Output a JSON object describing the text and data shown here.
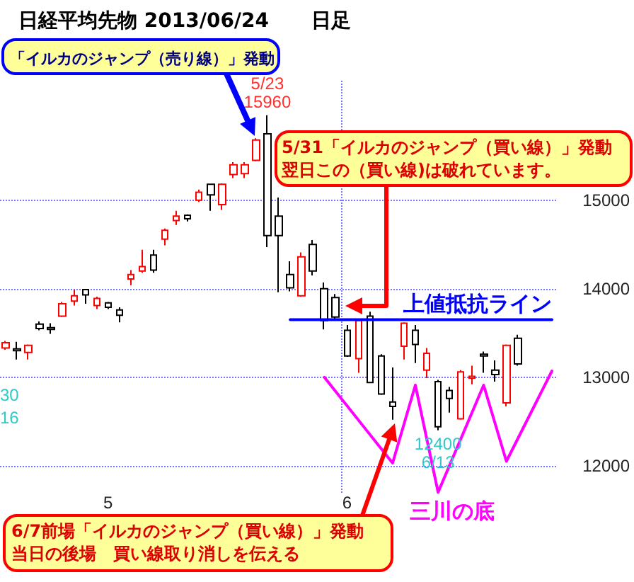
{
  "chart_data": {
    "type": "candlestick",
    "title": "日経平均先物 2013/06/24",
    "subtitle": "日足",
    "categories": [
      null,
      null,
      null,
      null,
      null,
      null,
      null,
      null,
      null,
      "5",
      null,
      null,
      null,
      null,
      null,
      null,
      null,
      null,
      null,
      null,
      null,
      null,
      null,
      null,
      null,
      null,
      null,
      null,
      null,
      null,
      "6",
      null,
      null,
      null,
      null,
      null,
      null,
      null,
      null,
      null,
      null,
      null,
      null,
      null,
      null,
      null,
      null,
      null,
      null
    ],
    "ohlc": [
      [
        13330,
        13410,
        13310,
        13390
      ],
      [
        13320,
        13400,
        13200,
        13300
      ],
      [
        13280,
        13370,
        13200,
        13360
      ],
      [
        13600,
        13630,
        13530,
        13550
      ],
      [
        13560,
        13610,
        13490,
        13540
      ],
      [
        13690,
        13850,
        13680,
        13830
      ],
      [
        13860,
        13990,
        13810,
        13920
      ],
      [
        13990,
        13990,
        13830,
        13930
      ],
      [
        13810,
        13910,
        13770,
        13890
      ],
      [
        13840,
        13850,
        13770,
        13790
      ],
      [
        13760,
        13790,
        13620,
        13700
      ],
      [
        14110,
        14210,
        14040,
        14160
      ],
      [
        14200,
        14440,
        14180,
        14250
      ],
      [
        14380,
        14440,
        14180,
        14210
      ],
      [
        14560,
        14680,
        14490,
        14660
      ],
      [
        14770,
        14880,
        14720,
        14820
      ],
      [
        14830,
        14840,
        14760,
        14790
      ],
      [
        15000,
        15120,
        14980,
        15090
      ],
      [
        15180,
        15180,
        14880,
        15060
      ],
      [
        14950,
        15190,
        14890,
        15180
      ],
      [
        15290,
        15430,
        15250,
        15400
      ],
      [
        15300,
        15430,
        15250,
        15400
      ],
      [
        15450,
        15700,
        15440,
        15680
      ],
      [
        15750,
        15960,
        14470,
        14600
      ],
      [
        14820,
        15030,
        13960,
        14600
      ],
      [
        14160,
        14310,
        13970,
        14010
      ],
      [
        13920,
        14410,
        13910,
        14360
      ],
      [
        14500,
        14550,
        14150,
        14200
      ],
      [
        14000,
        14070,
        13540,
        13640
      ],
      [
        13900,
        13940,
        13650,
        13680
      ],
      [
        13530,
        13590,
        13230,
        13240
      ],
      [
        13210,
        13640,
        13050,
        13640
      ],
      [
        13690,
        13740,
        12940,
        12940
      ],
      [
        13240,
        13260,
        12800,
        12810
      ],
      [
        12720,
        13110,
        12520,
        12670
      ],
      [
        13350,
        13620,
        13200,
        13610
      ],
      [
        13530,
        13590,
        13160,
        13370
      ],
      [
        13080,
        13330,
        12990,
        13270
      ],
      [
        12950,
        12970,
        12400,
        12440
      ],
      [
        12850,
        12890,
        12600,
        12760
      ],
      [
        12530,
        13080,
        12520,
        13060
      ],
      [
        12990,
        13130,
        12920,
        13010
      ],
      [
        13260,
        13290,
        13050,
        13240
      ],
      [
        13080,
        13190,
        12950,
        13030
      ],
      [
        12710,
        13370,
        12670,
        13360
      ],
      [
        13440,
        13480,
        13130,
        13150
      ],
      null,
      null,
      null
    ],
    "colors": [
      "#ff0000",
      "#000000",
      "#ff0000",
      "#000000",
      "#000000",
      "#ff0000",
      "#ff0000",
      "#000000",
      "#ff0000",
      "#000000",
      "#000000",
      "#ff0000",
      "#ff0000",
      "#000000",
      "#ff0000",
      "#ff0000",
      "#000000",
      "#ff0000",
      "#000000",
      "#ff0000",
      "#ff0000",
      "#ff0000",
      "#ff0000",
      "#000000",
      "#000000",
      "#000000",
      "#ff0000",
      "#000000",
      "#000000",
      "#000000",
      "#000000",
      "#ff0000",
      "#000000",
      "#000000",
      "#000000",
      "#ff0000",
      "#000000",
      "#ff0000",
      "#000000",
      "#000000",
      "#ff0000",
      "#ff0000",
      "#000000",
      "#000000",
      "#ff0000",
      "#000000",
      null,
      null,
      null
    ],
    "series": [
      {
        "type": "line",
        "name": "三川の底",
        "color": "#ff00ff",
        "values": [
          null,
          null,
          null,
          null,
          null,
          null,
          null,
          null,
          null,
          null,
          null,
          null,
          null,
          null,
          null,
          null,
          null,
          null,
          null,
          null,
          null,
          null,
          null,
          null,
          null,
          null,
          null,
          null,
          13000,
          null,
          null,
          null,
          null,
          null,
          12030,
          null,
          12910,
          null,
          11700,
          null,
          null,
          null,
          12910,
          null,
          12050,
          null,
          null,
          null,
          13070
        ]
      },
      {
        "type": "line",
        "name": "上値抵抗ライン",
        "color": "#0000ff",
        "values": [
          null,
          null,
          null,
          null,
          null,
          null,
          null,
          null,
          null,
          null,
          null,
          null,
          null,
          null,
          null,
          null,
          null,
          null,
          null,
          null,
          null,
          null,
          null,
          null,
          null,
          13650,
          null,
          null,
          null,
          null,
          null,
          null,
          null,
          null,
          null,
          null,
          null,
          null,
          null,
          null,
          null,
          null,
          null,
          null,
          null,
          null,
          null,
          null,
          13650
        ]
      }
    ],
    "ylim": [
      11680,
      16350
    ],
    "yticks": [
      12000,
      13000,
      14000,
      15000
    ],
    "grid": true,
    "annotations": [
      "「イルカのジャンプ（売り線）」発動",
      "5/31「イルカのジャンプ（買い線）」発動翌日この（買い線)は破れています。",
      "6/7前場「イルカのジャンプ（買い線）」発動当日の後場　買い線取り消しを伝える",
      {
        "text": "5/23\n15960",
        "y": 15960
      },
      {
        "text": "12400\n6/13",
        "y": 12400
      },
      "30\n16"
    ]
  }
}
